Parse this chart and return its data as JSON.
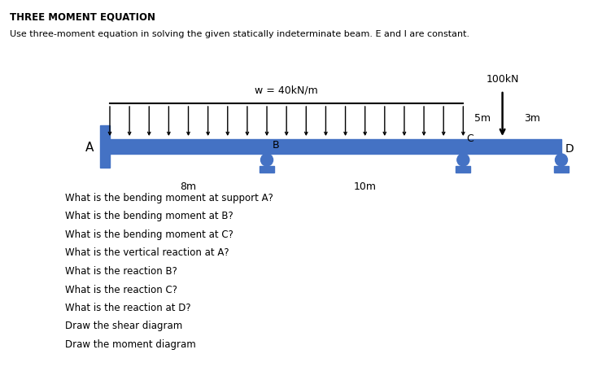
{
  "title": "THREE MOMENT EQUATION",
  "subtitle": "Use three-moment equation in solving the given statically indeterminate beam. E and I are constant.",
  "beam_color": "#4472C4",
  "support_color": "#4472C4",
  "load_label": "w = 40kN/m",
  "point_load_label": "100kN",
  "label_A": "A",
  "label_B": "B",
  "label_C": "C",
  "label_D": "D",
  "dim_AB": "8m",
  "dim_BC": "10m",
  "dim_C_to_load": "5m",
  "dim_load_to_D": "3m",
  "questions": [
    "What is the bending moment at support A?",
    "What is the bending moment at B?",
    "What is the bending moment at C?",
    "What is the vertical reaction at A?",
    "What is the reaction B?",
    "What is the reaction C?",
    "What is the reaction at D?",
    "Draw the shear diagram",
    "Draw the moment diagram"
  ]
}
